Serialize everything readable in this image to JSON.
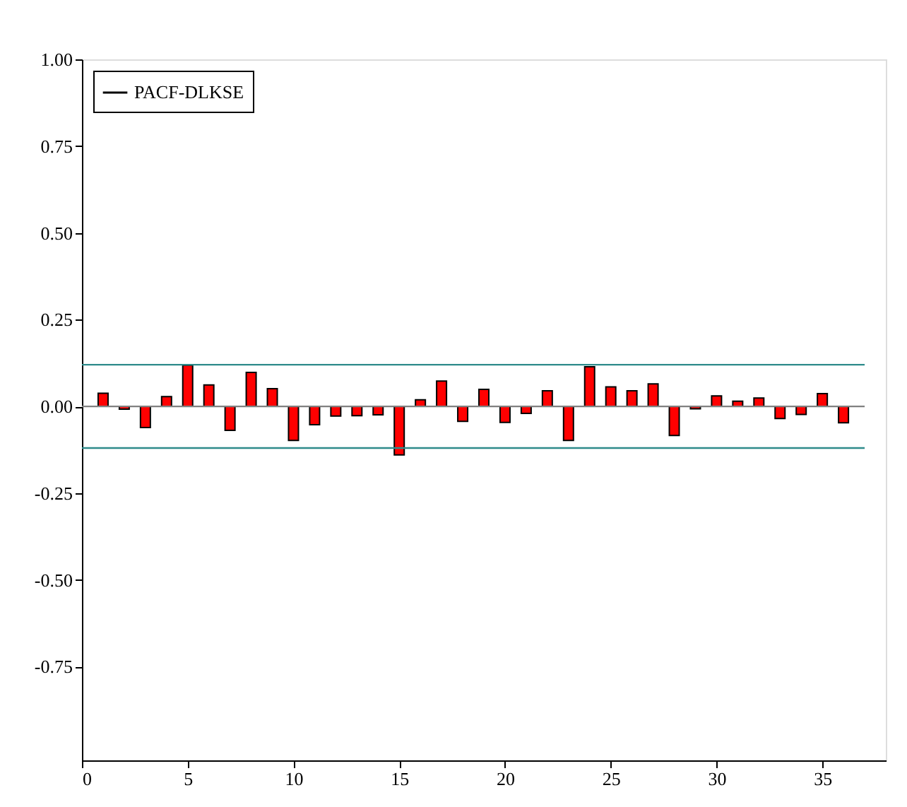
{
  "chart_data": {
    "type": "bar",
    "x": [
      1,
      2,
      3,
      4,
      5,
      6,
      7,
      8,
      9,
      10,
      11,
      12,
      13,
      14,
      15,
      16,
      17,
      18,
      19,
      20,
      21,
      22,
      23,
      24,
      25,
      26,
      27,
      28,
      29,
      30,
      31,
      32,
      33,
      34,
      35,
      36
    ],
    "series": [
      {
        "name": "PACF-DLKSE",
        "color": "#ff0000",
        "values": [
          0.038,
          -0.008,
          -0.061,
          0.028,
          0.119,
          0.062,
          -0.069,
          0.098,
          0.051,
          -0.098,
          -0.053,
          -0.028,
          -0.027,
          -0.024,
          -0.14,
          0.019,
          0.073,
          -0.043,
          0.049,
          -0.046,
          -0.02,
          0.045,
          -0.098,
          0.114,
          0.056,
          0.045,
          0.065,
          -0.084,
          -0.007,
          0.03,
          0.015,
          0.024,
          -0.035,
          -0.023,
          0.037,
          -0.047
        ]
      }
    ],
    "xlim": [
      0,
      38
    ],
    "xticks": [
      0,
      5,
      10,
      15,
      20,
      25,
      30,
      35
    ],
    "ylim": [
      -1.02,
      1
    ],
    "yticks": [
      {
        "value": 1,
        "label": "1.00"
      },
      {
        "value": 0.75,
        "label": "0.75"
      },
      {
        "value": 0.5,
        "label": "0.50"
      },
      {
        "value": 0.25,
        "label": "0.25"
      },
      {
        "value": 0,
        "label": "0.00"
      },
      {
        "value": -0.25,
        "label": "-0.25"
      },
      {
        "value": -0.5,
        "label": "-0.50"
      },
      {
        "value": -0.75,
        "label": "-0.75"
      }
    ],
    "ref_lines": [
      {
        "axis": "y",
        "value": 0.12,
        "color": "#2e8b8b"
      },
      {
        "axis": "y",
        "value": -0.12,
        "color": "#2e8b8b"
      },
      {
        "axis": "y",
        "value": 0,
        "color": "#808080"
      }
    ],
    "legend": "top left",
    "grid": false
  }
}
